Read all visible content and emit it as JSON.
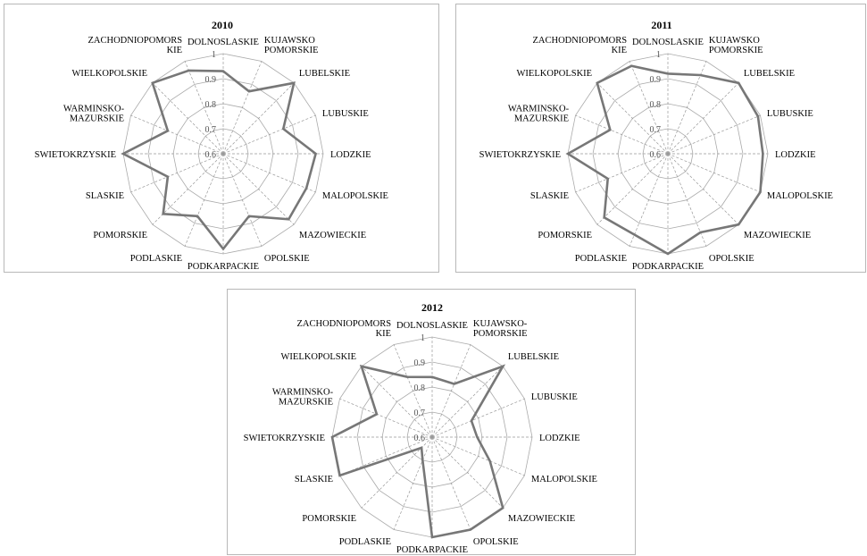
{
  "chart_data": [
    {
      "type": "radar",
      "title": "2010",
      "categories": [
        "DOLNOSLASKIE",
        "KUJAWSKO POMORSKIE",
        "LUBELSKIE",
        "LUBUSKIE",
        "LODZKIE",
        "MALOPOLSKIE",
        "MAZOWIECKIE",
        "OPOLSKIE",
        "PODKARPACKIE",
        "PODLASKIE",
        "POMORSKIE",
        "SLASKIE",
        "SWIETOKRZYSKIE",
        "WARMINSKO-MAZURSKIE",
        "WIELKOPOLSKIE",
        "ZACHODNIOPOMORSKIE"
      ],
      "category_display": [
        "DOLNOSLASKIE",
        "KUJAWSKO|POMORSKIE",
        "LUBELSKIE",
        "LUBUSKIE",
        "LODZKIE",
        "MALOPOLSKIE",
        "MAZOWIECKIE",
        "OPOLSKIE",
        "PODKARPACKIE",
        "PODLASKIE",
        "POMORSKIE",
        "SLASKIE",
        "SWIETOKRZYSKIE",
        "WARMINSKO-|MAZURSKIE",
        "WIELKOPOLSKIE",
        "ZACHODNIOPOMORS|KIE"
      ],
      "values": [
        0.93,
        0.87,
        1.0,
        0.86,
        0.97,
        0.96,
        0.97,
        0.87,
        0.98,
        0.87,
        0.94,
        0.84,
        1.0,
        0.84,
        1.0,
        0.96
      ],
      "rlim": [
        0.6,
        1.0
      ],
      "ticks": [
        "0.6",
        "0.7",
        "0.8",
        "0.9",
        "1"
      ]
    },
    {
      "type": "radar",
      "title": "2011",
      "categories": [
        "DOLNOSLASKIE",
        "KUJAWSKO POMORSKIE",
        "LUBELSKIE",
        "LUBUSKIE",
        "LODZKIE",
        "MALOPOLSKIE",
        "MAZOWIECKIE",
        "OPOLSKIE",
        "PODKARPACKIE",
        "PODLASKIE",
        "POMORSKIE",
        "SLASKIE",
        "SWIETOKRZYSKIE",
        "WARMINSKO-MAZURSKIE",
        "WIELKOPOLSKIE",
        "ZACHODNIOPOMORSKIE"
      ],
      "category_display": [
        "DOLNOSLASKIE",
        "KUJAWSKO|POMORSKIE",
        "LUBELSKIE",
        "LUBUSKIE",
        "LODZKIE",
        "MALOPOLSKIE",
        "MAZOWIECKIE",
        "OPOLSKIE",
        "PODKARPACKIE",
        "PODLASKIE",
        "POMORSKIE",
        "SLASKIE",
        "SWIETOKRZYSKIE",
        "WARMINSKO-|MAZURSKIE",
        "WIELKOPOLSKIE",
        "ZACHODNIOPOMORS|KIE"
      ],
      "values": [
        0.92,
        0.94,
        1.0,
        0.99,
        0.98,
        1.0,
        1.0,
        0.94,
        1.0,
        0.95,
        0.96,
        0.86,
        1.0,
        0.85,
        1.0,
        0.98
      ],
      "rlim": [
        0.6,
        1.0
      ],
      "ticks": [
        "0.6",
        "0.7",
        "0.8",
        "0.9",
        "1"
      ]
    },
    {
      "type": "radar",
      "title": "2012",
      "categories": [
        "DOLNOSLASKIE",
        "KUJAWSKO-POMORSKIE",
        "LUBELSKIE",
        "LUBUSKIE",
        "LODZKIE",
        "MALOPOLSKIE",
        "MAZOWIECKIE",
        "OPOLSKIE",
        "PODKARPACKIE",
        "PODLASKIE",
        "POMORSKIE",
        "SLASKIE",
        "SWIETOKRZYSKIE",
        "WARMINSKO-MAZURSKIE",
        "WIELKOPOLSKIE",
        "ZACHODNIOPOMORSKIE"
      ],
      "category_display": [
        "DOLNOSLASKIE",
        "KUJAWSKO-|POMORSKIE",
        "LUBELSKIE",
        "LUBUSKIE",
        "LODZKIE",
        "MALOPOLSKIE",
        "MAZOWIECKIE",
        "OPOLSKIE",
        "PODKARPACKIE",
        "PODLASKIE",
        "POMORSKIE",
        "SLASKIE",
        "SWIETOKRZYSKIE",
        "WARMINSKO-|MAZURSKIE",
        "WIELKOPOLSKIE",
        "ZACHODNIOPOMORS|KIE"
      ],
      "values": [
        0.84,
        0.83,
        1.0,
        0.77,
        0.78,
        0.85,
        1.0,
        1.0,
        1.0,
        0.7,
        0.66,
        1.0,
        1.0,
        0.84,
        1.0,
        0.86
      ],
      "rlim": [
        0.6,
        1.0
      ],
      "ticks": [
        "0.6",
        "0.7",
        "0.8",
        "0.9",
        "1"
      ]
    }
  ],
  "style": {
    "series_color": "#777777",
    "grid_color": "#aaaaaa",
    "spoke_color": "#999999"
  }
}
